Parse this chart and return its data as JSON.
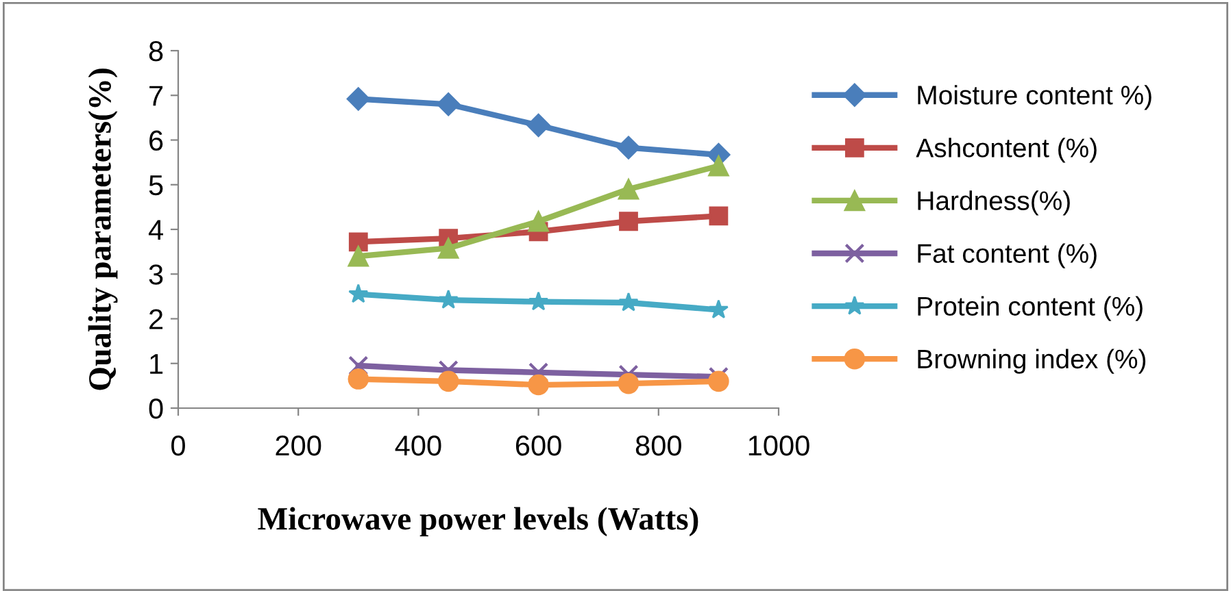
{
  "chart_data": {
    "type": "line",
    "xlabel": "Microwave power levels (Watts)",
    "ylabel": "Quality parameters(%)",
    "x": [
      300,
      450,
      600,
      750,
      900
    ],
    "xlim": [
      0,
      1000
    ],
    "xticks": [
      0,
      200,
      400,
      600,
      800,
      1000
    ],
    "ylim": [
      0,
      8
    ],
    "yticks": [
      0,
      1,
      2,
      3,
      4,
      5,
      6,
      7,
      8
    ],
    "grid": false,
    "legend": "right",
    "series": [
      {
        "name": "Moisture content %)",
        "color": "#4a7ebb",
        "marker": "diamond",
        "values": [
          6.92,
          6.8,
          6.33,
          5.83,
          5.67
        ]
      },
      {
        "name": "Ashcontent (%)",
        "color": "#be4b48",
        "marker": "square",
        "values": [
          3.72,
          3.8,
          3.95,
          4.18,
          4.3
        ]
      },
      {
        "name": "Hardness(%)",
        "color": "#98b954",
        "marker": "triangle",
        "values": [
          3.4,
          3.58,
          4.18,
          4.9,
          5.42
        ]
      },
      {
        "name": "Fat content (%)",
        "color": "#7d60a0",
        "marker": "cross",
        "values": [
          0.95,
          0.85,
          0.8,
          0.75,
          0.7
        ]
      },
      {
        "name": "Protein content (%)",
        "color": "#46aac5",
        "marker": "star",
        "values": [
          2.55,
          2.42,
          2.38,
          2.36,
          2.2
        ]
      },
      {
        "name": "Browning index (%)",
        "color": "#f79646",
        "marker": "circle",
        "values": [
          0.65,
          0.6,
          0.52,
          0.55,
          0.6
        ]
      }
    ]
  }
}
